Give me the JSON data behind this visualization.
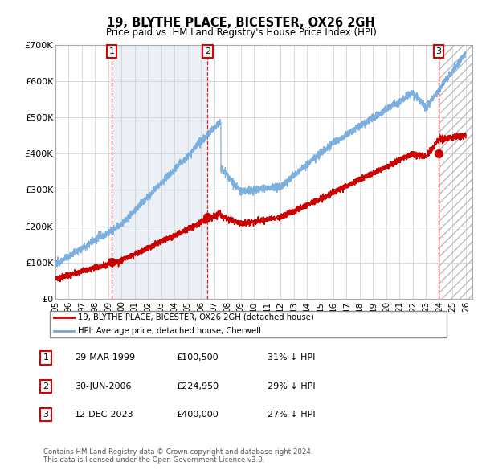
{
  "title1": "19, BLYTHE PLACE, BICESTER, OX26 2GH",
  "title2": "Price paid vs. HM Land Registry's House Price Index (HPI)",
  "hpi_color": "#6fa8dc",
  "price_color": "#cc0000",
  "marker_color": "#cc0000",
  "bg_shaded": "#dce6f1",
  "purchases": [
    {
      "date_num": 1999.24,
      "price": 100500,
      "label": "1"
    },
    {
      "date_num": 2006.49,
      "price": 224950,
      "label": "2"
    },
    {
      "date_num": 2023.95,
      "price": 400000,
      "label": "3"
    }
  ],
  "legend_entries": [
    "19, BLYTHE PLACE, BICESTER, OX26 2GH (detached house)",
    "HPI: Average price, detached house, Cherwell"
  ],
  "table_rows": [
    {
      "num": "1",
      "date": "29-MAR-1999",
      "price": "£100,500",
      "hpi": "31% ↓ HPI"
    },
    {
      "num": "2",
      "date": "30-JUN-2006",
      "price": "£224,950",
      "hpi": "29% ↓ HPI"
    },
    {
      "num": "3",
      "date": "12-DEC-2023",
      "price": "£400,000",
      "hpi": "27% ↓ HPI"
    }
  ],
  "footnote": "Contains HM Land Registry data © Crown copyright and database right 2024.\nThis data is licensed under the Open Government Licence v3.0.",
  "ylim": [
    0,
    700000
  ],
  "xlim_start": 1995.0,
  "xlim_end": 2026.5,
  "yticks": [
    0,
    100000,
    200000,
    300000,
    400000,
    500000,
    600000,
    700000
  ],
  "ytick_labels": [
    "£0",
    "£100K",
    "£200K",
    "£300K",
    "£400K",
    "£500K",
    "£600K",
    "£700K"
  ],
  "xticks": [
    1995,
    1996,
    1997,
    1998,
    1999,
    2000,
    2001,
    2002,
    2003,
    2004,
    2005,
    2006,
    2007,
    2008,
    2009,
    2010,
    2011,
    2012,
    2013,
    2014,
    2015,
    2016,
    2017,
    2018,
    2019,
    2020,
    2021,
    2022,
    2023,
    2024,
    2025,
    2026
  ]
}
